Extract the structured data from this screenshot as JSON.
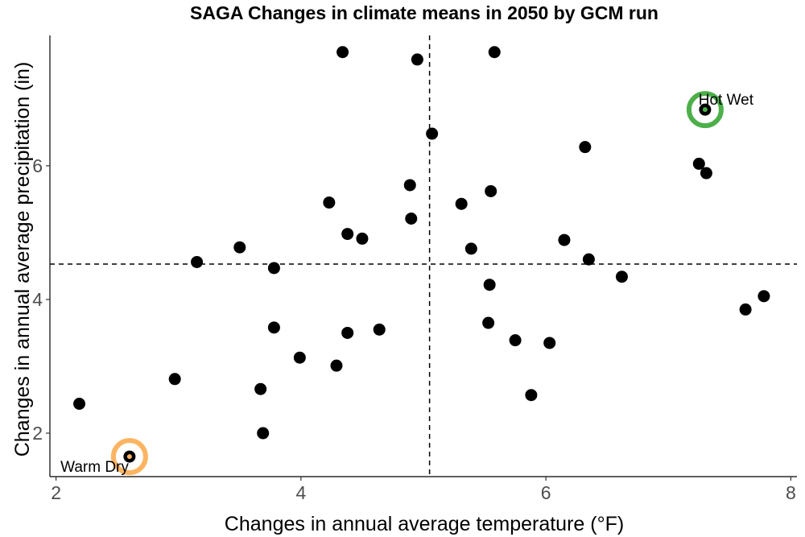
{
  "chart_data": {
    "type": "scatter",
    "title": "SAGA Changes in climate means in 2050 by GCM run",
    "xlabel": "Changes in annual average temperature (°F)",
    "ylabel": "Changes in annual average precipitation (in)",
    "xlim": [
      1.95,
      8.05
    ],
    "ylim": [
      1.35,
      7.95
    ],
    "xticks": [
      2,
      4,
      6,
      8
    ],
    "yticks": [
      2,
      4,
      6
    ],
    "grid": false,
    "reference_lines": {
      "x": 5.05,
      "y": 4.53
    },
    "points": [
      {
        "x": 2.19,
        "y": 2.44
      },
      {
        "x": 2.97,
        "y": 2.81
      },
      {
        "x": 3.15,
        "y": 4.56
      },
      {
        "x": 3.5,
        "y": 4.78
      },
      {
        "x": 3.67,
        "y": 2.66
      },
      {
        "x": 3.69,
        "y": 2.0
      },
      {
        "x": 3.78,
        "y": 4.47
      },
      {
        "x": 3.78,
        "y": 3.58
      },
      {
        "x": 3.99,
        "y": 3.13
      },
      {
        "x": 4.23,
        "y": 5.45
      },
      {
        "x": 4.29,
        "y": 3.01
      },
      {
        "x": 4.34,
        "y": 7.7
      },
      {
        "x": 4.38,
        "y": 4.98
      },
      {
        "x": 4.38,
        "y": 3.5
      },
      {
        "x": 4.5,
        "y": 4.91
      },
      {
        "x": 4.64,
        "y": 3.55
      },
      {
        "x": 4.89,
        "y": 5.71
      },
      {
        "x": 4.9,
        "y": 5.21
      },
      {
        "x": 4.95,
        "y": 7.59
      },
      {
        "x": 5.07,
        "y": 6.48
      },
      {
        "x": 5.31,
        "y": 5.43
      },
      {
        "x": 5.39,
        "y": 4.76
      },
      {
        "x": 5.53,
        "y": 3.65
      },
      {
        "x": 5.54,
        "y": 4.22
      },
      {
        "x": 5.55,
        "y": 5.62
      },
      {
        "x": 5.58,
        "y": 7.7
      },
      {
        "x": 5.75,
        "y": 3.39
      },
      {
        "x": 5.88,
        "y": 2.57
      },
      {
        "x": 6.03,
        "y": 3.35
      },
      {
        "x": 6.15,
        "y": 4.89
      },
      {
        "x": 6.32,
        "y": 6.28
      },
      {
        "x": 6.35,
        "y": 4.6
      },
      {
        "x": 6.62,
        "y": 4.34
      },
      {
        "x": 7.25,
        "y": 6.03
      },
      {
        "x": 7.31,
        "y": 5.89
      },
      {
        "x": 7.63,
        "y": 3.85
      },
      {
        "x": 7.78,
        "y": 4.05
      },
      {
        "x": 7.3,
        "y": 6.84
      },
      {
        "x": 2.6,
        "y": 1.65
      }
    ],
    "highlights": [
      {
        "label": "Hot Wet",
        "x": 7.3,
        "y": 6.84,
        "ring_color": "#4daf4a",
        "dot_color": "#4daf4a",
        "label_anchor": "above"
      },
      {
        "label": "Warm Dry",
        "x": 2.6,
        "y": 1.65,
        "ring_color": "#fdb462",
        "dot_color": "#fdb462",
        "label_anchor": "below-left"
      }
    ]
  }
}
